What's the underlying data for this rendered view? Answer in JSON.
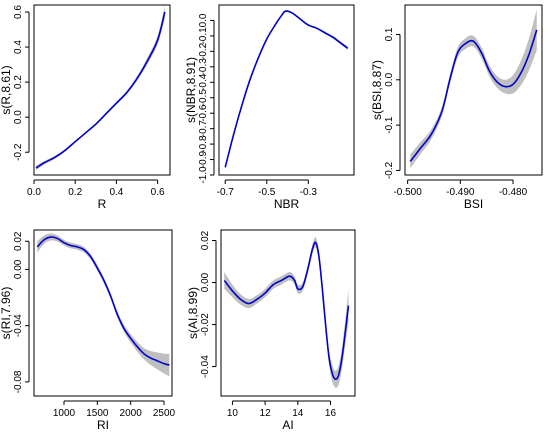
{
  "chart_data": [
    {
      "type": "line",
      "xlabel": "R",
      "ylabel": "s(R,8.61)",
      "xlim": [
        0.0,
        0.66
      ],
      "ylim": [
        -0.33,
        0.64
      ],
      "xticks": [
        "0.0",
        "0.2",
        "0.4",
        "0.6"
      ],
      "xtick_values": [
        0.0,
        0.2,
        0.4,
        0.6
      ],
      "yticks": [
        "-0.2",
        "0.0",
        "0.2",
        "0.4",
        "0.6"
      ],
      "ytick_values": [
        -0.2,
        0.0,
        0.2,
        0.4,
        0.6
      ],
      "series": [
        {
          "x": [
            0.01,
            0.05,
            0.1,
            0.15,
            0.2,
            0.25,
            0.3,
            0.35,
            0.4,
            0.45,
            0.5,
            0.55,
            0.6,
            0.635
          ],
          "y": [
            -0.29,
            -0.26,
            -0.23,
            -0.19,
            -0.14,
            -0.09,
            -0.04,
            0.02,
            0.08,
            0.14,
            0.22,
            0.32,
            0.44,
            0.6
          ],
          "ci": [
            0.012,
            0.01,
            0.008,
            0.007,
            0.006,
            0.006,
            0.006,
            0.007,
            0.008,
            0.01,
            0.013,
            0.018,
            0.025,
            0.035
          ]
        }
      ]
    },
    {
      "type": "line",
      "xlabel": "NBR",
      "ylabel": "s(NBR,8.91)",
      "xlim": [
        -0.73,
        -0.08
      ],
      "ylim": [
        -1.0,
        0.1
      ],
      "xticks": [
        "-0.7",
        "-0.5",
        "-0.3"
      ],
      "xtick_values": [
        -0.7,
        -0.5,
        -0.3
      ],
      "yticks": [
        "-1.0",
        "-0.9",
        "-0.8",
        "-0.7",
        "-0.6",
        "-0.5",
        "-0.4",
        "-0.3",
        "-0.2",
        "-0.1",
        "0.0"
      ],
      "ytick_values": [
        -1.0,
        -0.9,
        -0.8,
        -0.7,
        -0.6,
        -0.5,
        -0.4,
        -0.3,
        -0.2,
        -0.1,
        0.0
      ],
      "series": [
        {
          "x": [
            -0.7,
            -0.66,
            -0.62,
            -0.58,
            -0.54,
            -0.5,
            -0.46,
            -0.43,
            -0.41,
            -0.38,
            -0.34,
            -0.3,
            -0.26,
            -0.22,
            -0.18,
            -0.15,
            -0.11
          ],
          "y": [
            -0.95,
            -0.74,
            -0.55,
            -0.38,
            -0.24,
            -0.12,
            -0.03,
            0.03,
            0.06,
            0.05,
            0.01,
            -0.03,
            -0.05,
            -0.08,
            -0.11,
            -0.14,
            -0.18
          ],
          "ci": [
            0.012,
            0.01,
            0.008,
            0.007,
            0.006,
            0.006,
            0.006,
            0.006,
            0.006,
            0.006,
            0.006,
            0.006,
            0.007,
            0.008,
            0.009,
            0.01,
            0.012
          ]
        }
      ]
    },
    {
      "type": "line",
      "xlabel": "BSI",
      "ylabel": "s(BSI,8.87)",
      "xlim": [
        -0.5005,
        -0.4745
      ],
      "ylim": [
        -0.21,
        0.165
      ],
      "xticks": [
        "-0.500",
        "-0.490",
        "-0.480"
      ],
      "xtick_values": [
        -0.5,
        -0.49,
        -0.48
      ],
      "yticks": [
        "-0.2",
        "-0.1",
        "0.0",
        "0.1"
      ],
      "ytick_values": [
        -0.2,
        -0.1,
        0.0,
        0.1
      ],
      "series": [
        {
          "x": [
            -0.4995,
            -0.4975,
            -0.4955,
            -0.4935,
            -0.492,
            -0.4905,
            -0.489,
            -0.4875,
            -0.486,
            -0.4845,
            -0.483,
            -0.4815,
            -0.48,
            -0.4785,
            -0.477,
            -0.4755
          ],
          "y": [
            -0.18,
            -0.15,
            -0.12,
            -0.07,
            0.0,
            0.06,
            0.08,
            0.085,
            0.06,
            0.02,
            -0.005,
            -0.015,
            -0.01,
            0.015,
            0.055,
            0.11
          ],
          "ci": [
            0.015,
            0.013,
            0.011,
            0.01,
            0.01,
            0.011,
            0.012,
            0.012,
            0.012,
            0.012,
            0.013,
            0.015,
            0.02,
            0.027,
            0.035,
            0.045
          ]
        }
      ]
    },
    {
      "type": "line",
      "xlabel": "RI",
      "ylabel": "s(RI,7.96)",
      "xlim": [
        550,
        2620
      ],
      "ylim": [
        -0.09,
        0.028
      ],
      "xticks": [
        "1000",
        "1500",
        "2000",
        "2500"
      ],
      "xtick_values": [
        1000,
        1500,
        2000,
        2500
      ],
      "yticks": [
        "-0.08",
        "-0.04",
        "0.00",
        "0.02"
      ],
      "ytick_values": [
        -0.08,
        -0.04,
        0.0,
        0.02
      ],
      "series": [
        {
          "x": [
            600,
            700,
            800,
            900,
            1000,
            1100,
            1200,
            1300,
            1400,
            1500,
            1600,
            1700,
            1800,
            1900,
            2000,
            2100,
            2200,
            2300,
            2400,
            2500,
            2580
          ],
          "y": [
            0.016,
            0.021,
            0.023,
            0.022,
            0.019,
            0.017,
            0.016,
            0.014,
            0.009,
            0.001,
            -0.008,
            -0.019,
            -0.032,
            -0.042,
            -0.049,
            -0.055,
            -0.06,
            -0.063,
            -0.065,
            -0.067,
            -0.068
          ],
          "ci": [
            0.004,
            0.003,
            0.0025,
            0.0022,
            0.002,
            0.002,
            0.002,
            0.002,
            0.002,
            0.002,
            0.002,
            0.002,
            0.0022,
            0.0025,
            0.003,
            0.0035,
            0.004,
            0.005,
            0.006,
            0.007,
            0.008
          ]
        }
      ]
    },
    {
      "type": "line",
      "xlabel": "AI",
      "ylabel": "s(AI,8.99)",
      "xlim": [
        9.3,
        17.5
      ],
      "ylim": [
        -0.054,
        0.025
      ],
      "xticks": [
        "10",
        "12",
        "14",
        "16"
      ],
      "xtick_values": [
        10,
        12,
        14,
        16
      ],
      "yticks": [
        "-0.04",
        "-0.02",
        "0.00",
        "0.02"
      ],
      "ytick_values": [
        -0.04,
        -0.02,
        0.0,
        0.02
      ],
      "series": [
        {
          "x": [
            9.5,
            10.0,
            10.5,
            11.0,
            11.5,
            12.0,
            12.5,
            13.0,
            13.5,
            13.8,
            14.0,
            14.3,
            14.6,
            14.9,
            15.1,
            15.3,
            15.5,
            15.7,
            15.9,
            16.1,
            16.3,
            16.5,
            16.7,
            16.9,
            17.1
          ],
          "y": [
            0.001,
            -0.004,
            -0.008,
            -0.01,
            -0.008,
            -0.005,
            -0.001,
            0.001,
            0.003,
            0.001,
            -0.003,
            -0.002,
            0.006,
            0.016,
            0.019,
            0.012,
            -0.003,
            -0.02,
            -0.035,
            -0.043,
            -0.046,
            -0.044,
            -0.036,
            -0.024,
            -0.011
          ],
          "ci": [
            0.004,
            0.003,
            0.0025,
            0.0022,
            0.002,
            0.002,
            0.002,
            0.002,
            0.002,
            0.002,
            0.002,
            0.002,
            0.002,
            0.0022,
            0.0025,
            0.0025,
            0.0025,
            0.003,
            0.0035,
            0.004,
            0.004,
            0.0045,
            0.005,
            0.006,
            0.008
          ]
        }
      ]
    }
  ],
  "colors": {
    "line": "#0000cc",
    "band": "#bfbfbf",
    "axis": "#000000"
  }
}
